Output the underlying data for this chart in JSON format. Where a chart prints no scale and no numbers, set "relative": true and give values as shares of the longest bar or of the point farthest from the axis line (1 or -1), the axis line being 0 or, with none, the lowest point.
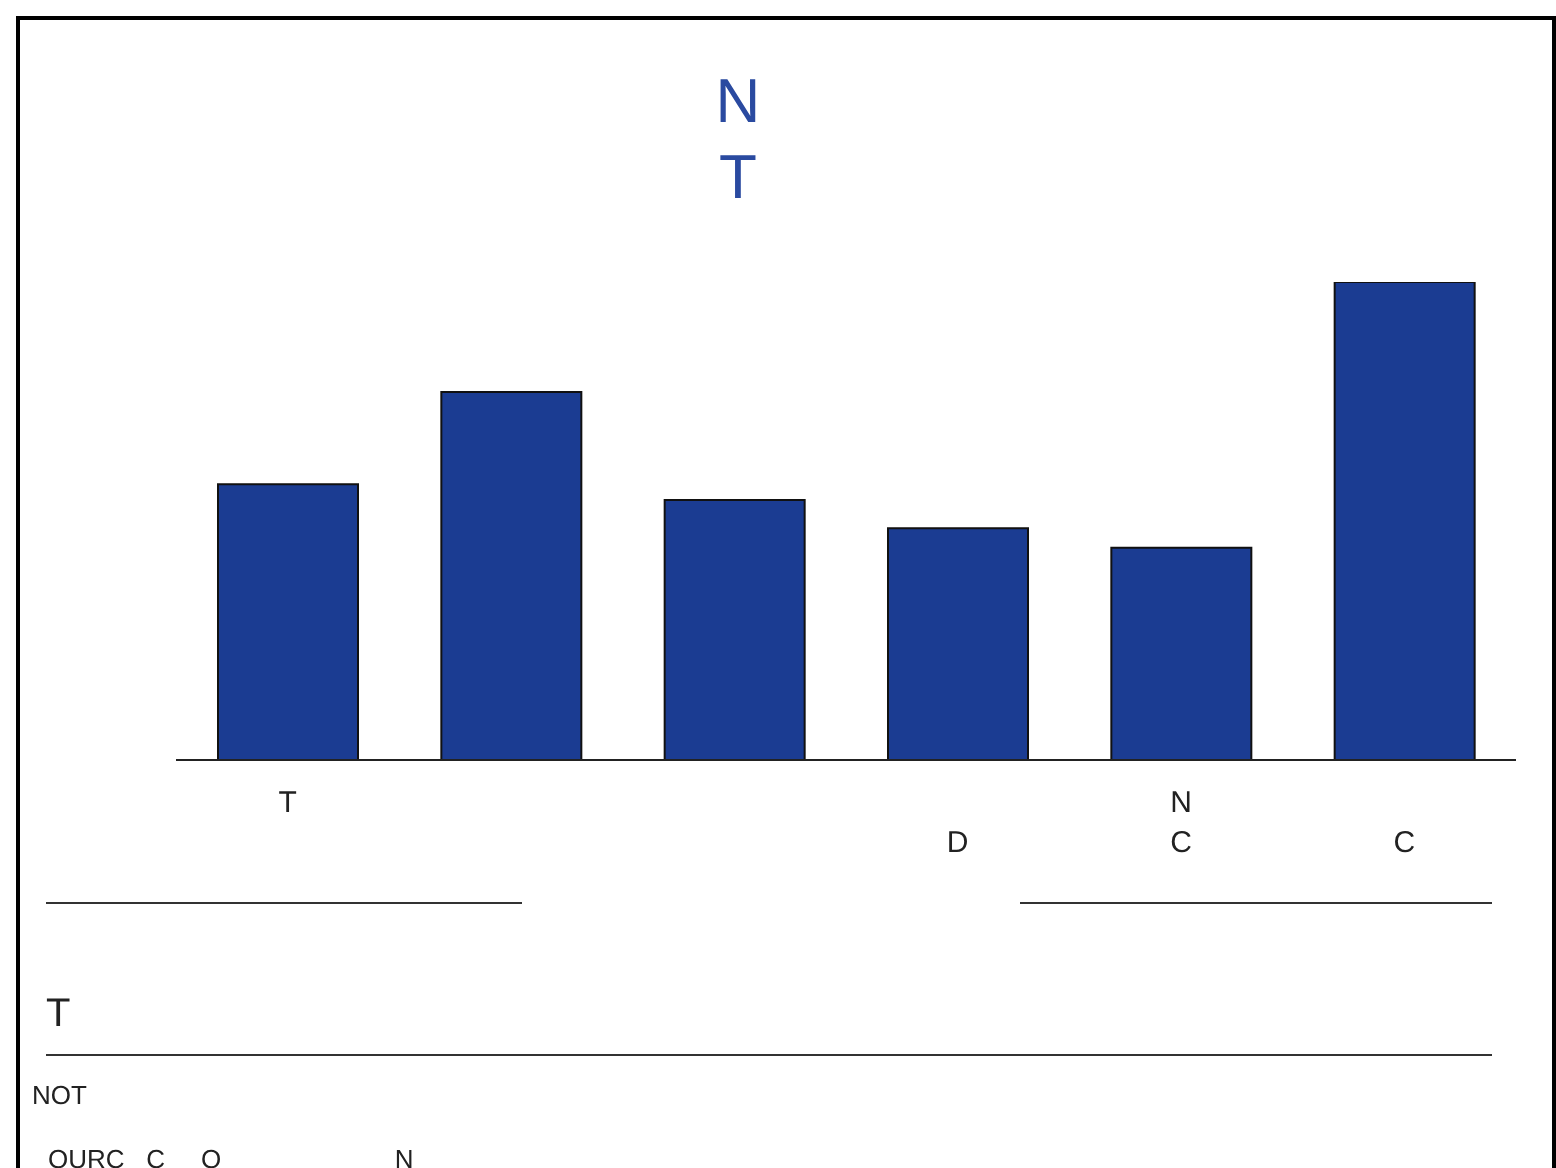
{
  "chart_data": {
    "type": "bar",
    "title": "N\nT",
    "relative": true,
    "categories": [
      "T",
      null,
      null,
      "\nD",
      "N\nC",
      "\nC"
    ],
    "values": [
      0.577,
      0.77,
      0.544,
      0.485,
      0.444,
      1
    ],
    "color": "#1b3c92",
    "annotations": [
      "T",
      "NOT",
      "OURC   C     O                        N"
    ]
  }
}
